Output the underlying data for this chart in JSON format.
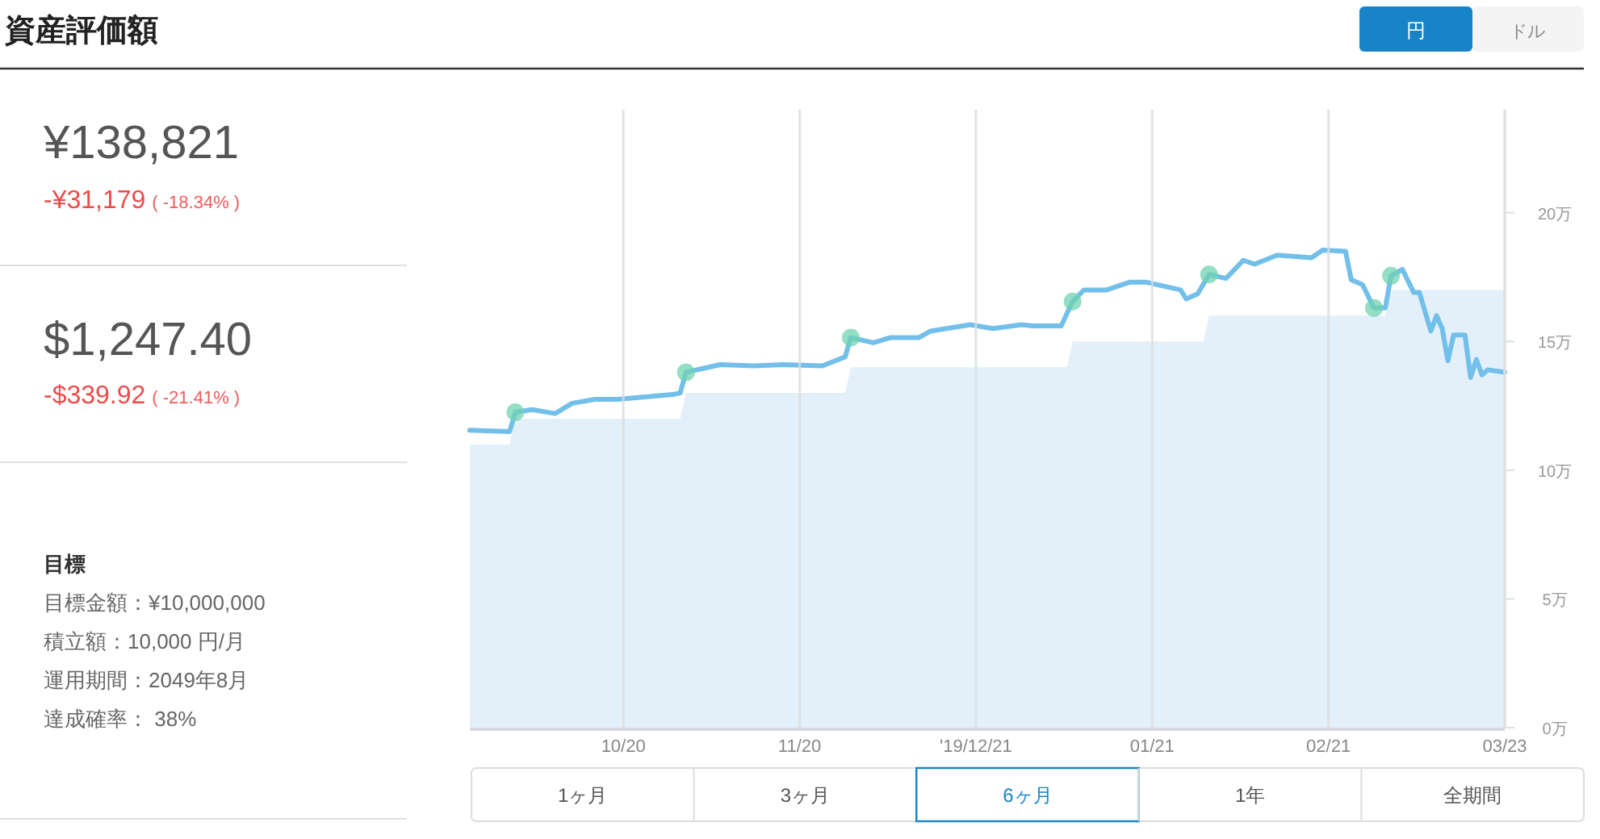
{
  "chart_data": [
    {
      "type": "area",
      "x": [
        "2019-09-23",
        "2019-09-30",
        "2019-10-01",
        "2019-10-30",
        "2019-10-31",
        "2019-11-28",
        "2019-11-29",
        "2020-01-06",
        "2020-01-07",
        "2020-01-30",
        "2020-01-31",
        "2020-03-02",
        "2020-03-03",
        "2020-03-23"
      ],
      "xlim": [
        "2019-09-23",
        "2020-03-23"
      ],
      "xticks": [
        {
          "value": "2019-10-20",
          "label": "10/20"
        },
        {
          "value": "2019-11-20",
          "label": "11/20"
        },
        {
          "value": "2019-12-21",
          "label": "'19/12/21"
        },
        {
          "value": "2020-01-21",
          "label": "01/21"
        },
        {
          "value": "2020-02-21",
          "label": "02/21"
        },
        {
          "value": "2020-03-23",
          "label": "03/23"
        }
      ],
      "ylim": [
        0,
        24
      ],
      "yticks": [
        {
          "value": 0,
          "label": "0万"
        },
        {
          "value": 5,
          "label": "5万"
        },
        {
          "value": 10,
          "label": "10万"
        },
        {
          "value": 15,
          "label": "15万"
        },
        {
          "value": 20,
          "label": "20万"
        }
      ],
      "grid": "x",
      "line_style": "solid",
      "series": [
        {
          "type": "area",
          "color": "#e3f0f9",
          "values": [
            11,
            11,
            12,
            12,
            13,
            13,
            14,
            14,
            15,
            15,
            16,
            16,
            17,
            17
          ]
        },
        {
          "type": "line",
          "color": "#72bfea",
          "x": [
            "2019-09-23",
            "2019-09-30",
            "2019-10-01",
            "2019-10-04",
            "2019-10-08",
            "2019-10-11",
            "2019-10-15",
            "2019-10-19",
            "2019-10-29",
            "2019-10-30",
            "2019-10-31",
            "2019-11-06",
            "2019-11-12",
            "2019-11-17",
            "2019-11-24",
            "2019-11-28",
            "2019-11-29",
            "2019-12-03",
            "2019-12-06",
            "2019-12-11",
            "2019-12-13",
            "2019-12-20",
            "2019-12-24",
            "2019-12-29",
            "2019-12-31",
            "2020-01-03",
            "2020-01-05",
            "2020-01-07",
            "2020-01-09",
            "2020-01-13",
            "2020-01-17",
            "2020-01-20",
            "2020-01-23",
            "2020-01-26",
            "2020-01-27",
            "2020-01-29",
            "2020-01-31",
            "2020-02-03",
            "2020-02-06",
            "2020-02-08",
            "2020-02-12",
            "2020-02-18",
            "2020-02-20",
            "2020-02-24",
            "2020-02-25",
            "2020-02-27",
            "2020-02-29",
            "2020-03-02",
            "2020-03-03",
            "2020-03-05",
            "2020-03-07",
            "2020-03-08",
            "2020-03-10",
            "2020-03-11",
            "2020-03-12",
            "2020-03-13",
            "2020-03-14",
            "2020-03-16",
            "2020-03-17",
            "2020-03-18",
            "2020-03-19",
            "2020-03-20",
            "2020-03-23"
          ],
          "values": [
            11.55,
            11.5,
            12.25,
            12.35,
            12.2,
            12.6,
            12.75,
            12.75,
            12.95,
            13,
            13.8,
            14.1,
            14.05,
            14.1,
            14.05,
            14.4,
            15.15,
            14.95,
            15.15,
            15.15,
            15.4,
            15.65,
            15.5,
            15.65,
            15.6,
            15.6,
            15.6,
            16.55,
            17,
            17,
            17.3,
            17.3,
            17.15,
            17,
            16.65,
            16.85,
            17.6,
            17.45,
            18.15,
            18,
            18.35,
            18.25,
            18.55,
            18.5,
            17.4,
            17.2,
            16.3,
            16.3,
            17.55,
            17.8,
            16.9,
            16.9,
            15.4,
            16,
            15.5,
            14.25,
            15.25,
            15.25,
            13.6,
            14.3,
            13.7,
            13.9,
            13.8
          ]
        },
        {
          "type": "scatter",
          "color": "#6fd3b0",
          "marker": "circle",
          "x": [
            "2019-10-01",
            "2019-10-31",
            "2019-11-29",
            "2020-01-07",
            "2020-01-31",
            "2020-02-29",
            "2020-03-03"
          ],
          "values": [
            12.25,
            13.8,
            15.15,
            16.55,
            17.6,
            16.3,
            17.55
          ]
        }
      ],
      "annotations": [
        "円",
        "ドル",
        "1ヶ月",
        "3ヶ月",
        "6ヶ月",
        "1年",
        "全期間"
      ]
    },
    {
      "type": "other",
      "title": "資産評価額",
      "annotations": [
        "¥138,821",
        "-¥31,179",
        "( -18.34% )",
        "$1,247.40",
        "-$339.92",
        "( -21.41% )",
        "目標",
        "目標金額：¥10,000,000",
        "積立額：10,000 円/月",
        "運用期間：2049年8月",
        "達成確率： 38%"
      ]
    }
  ]
}
